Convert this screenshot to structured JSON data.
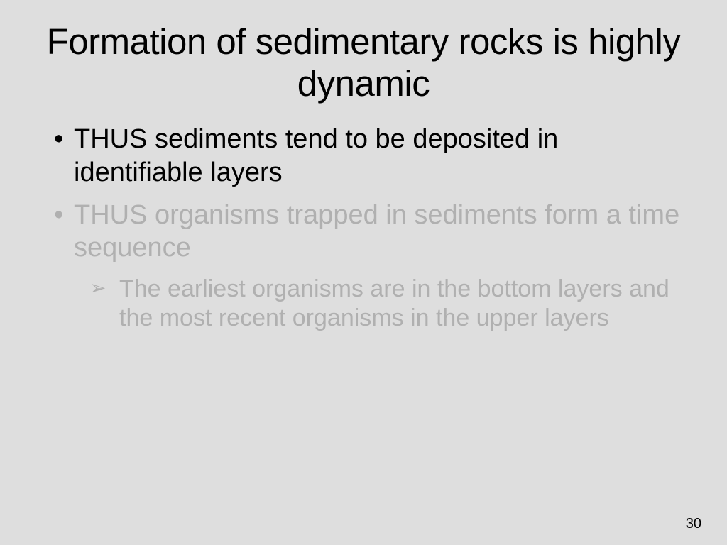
{
  "slide": {
    "title": "Formation of sedimentary rocks is highly dynamic",
    "bullets": [
      {
        "level": 1,
        "text": "THUS sediments tend to be deposited in identifiable layers",
        "state": "active"
      },
      {
        "level": 1,
        "text": "THUS organisms trapped in sediments form a time sequence",
        "state": "dimmed"
      },
      {
        "level": 2,
        "text": "The earliest organisms are in the bottom layers and the most recent organisms in the upper layers",
        "state": "dimmed"
      }
    ],
    "page_number": "30"
  },
  "colors": {
    "background": "#dedede",
    "text_active": "#000000",
    "text_dimmed": "#b0b0b0"
  },
  "typography": {
    "title_fontsize": 51,
    "bullet_l1_fontsize": 38,
    "bullet_l2_fontsize": 34,
    "page_number_fontsize": 20,
    "font_family": "Arial"
  }
}
